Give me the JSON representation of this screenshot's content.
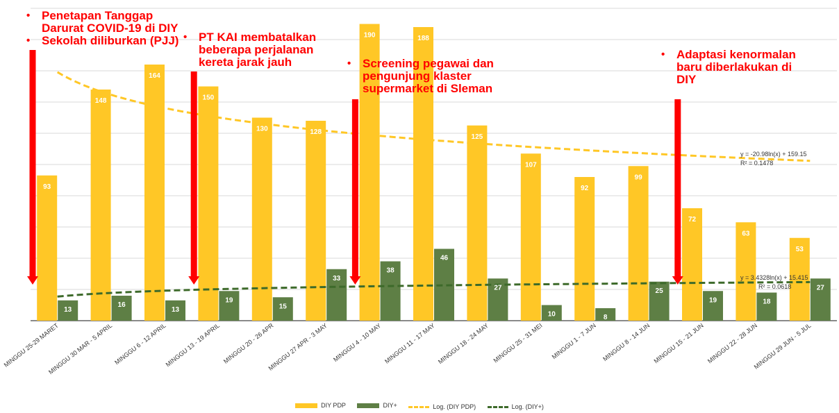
{
  "chart_data": {
    "type": "bar",
    "categories": [
      "MINGGU 25-29 MARET",
      "MINGGU 30 MAR - 5 APRIL",
      "MINGGU 6 - 12 APRIL",
      "MINGGU 13 - 19 APRIL",
      "MINGGU 20 - 26 APR",
      "MINGGU 27 APR - 3 MAY",
      "MINGGU 4 - 10 MAY",
      "MINGGU 11 - 17 MAY",
      "MINGGU 18 - 24 MAY",
      "MINGGU 25 - 31 MEI",
      "MINGGU 1 - 7 JUN",
      "MINGGU 8 - 14 JUN",
      "MINGGU 15 - 21 JUN",
      "MINGGU 22 - 28 JUN",
      "MINGGU 29 JUN - 5 JUL"
    ],
    "series": [
      {
        "name": "DIY PDP",
        "color": "#ffc726",
        "values": [
          93,
          148,
          164,
          150,
          130,
          128,
          190,
          188,
          125,
          107,
          92,
          99,
          72,
          63,
          53
        ]
      },
      {
        "name": "DIY+",
        "color": "#5e7f45",
        "values": [
          13,
          16,
          13,
          19,
          15,
          33,
          38,
          46,
          27,
          10,
          8,
          25,
          19,
          18,
          27
        ]
      }
    ],
    "trendlines": [
      {
        "name": "Log. (DIY PDP)",
        "color": "#ffc726",
        "a": -20.98,
        "b": 159.15,
        "equation": "y = -20.98ln(x) + 159.15",
        "r2": "R² = 0.1478"
      },
      {
        "name": "Log. (DIY+)",
        "color": "#3d6a2a",
        "a": 3.4328,
        "b": 15.415,
        "equation": "y = 3.4328ln(x) + 15.415",
        "r2": "R² = 0.0618"
      }
    ],
    "ylim": [
      0,
      200
    ],
    "grid": true,
    "legend_position": "bottom",
    "title": "",
    "xlabel": "",
    "ylabel": "",
    "event_arrow_weeks": [
      1,
      4,
      7,
      13
    ],
    "arrow_color": "#ff0000"
  },
  "annotations": [
    {
      "lines": [
        "Penetapan Tanggap Darurat COVID-19 di DIY",
        "Sekolah diliburkan (PJJ)"
      ]
    },
    {
      "lines": [
        "PT KAI membatalkan beberapa perjalanan kereta jarak jauh"
      ]
    },
    {
      "lines": [
        "Screening pegawai dan pengunjung klaster supermarket di Sleman"
      ]
    },
    {
      "lines": [
        "Adaptasi kenormalan baru diberlakukan di DIY"
      ]
    }
  ]
}
